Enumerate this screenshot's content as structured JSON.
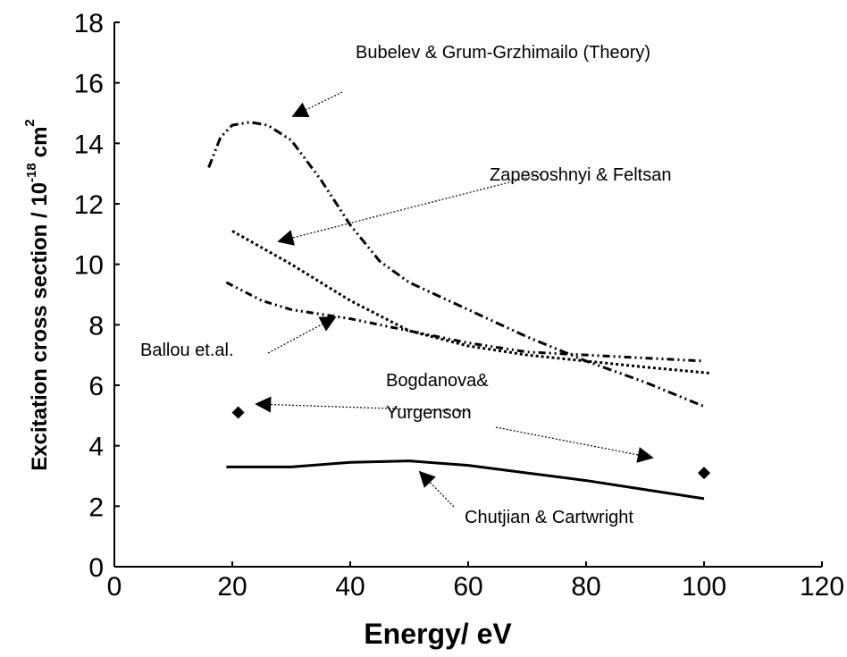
{
  "chart_data": {
    "type": "line",
    "x_label": "Energy/ eV",
    "y_label": {
      "text": "Excitation cross section / 10",
      "exponent": "-18",
      "unit": "cm",
      "unit_exponent": "2"
    },
    "xlim": [
      0,
      120
    ],
    "xticks": [
      0,
      20,
      40,
      60,
      80,
      100,
      120
    ],
    "ylim": [
      0,
      18
    ],
    "yticks": [
      0,
      2,
      4,
      6,
      8,
      10,
      12,
      14,
      16,
      18
    ],
    "color": "#000000",
    "series": [
      {
        "linestyle": "dash-dot-dot",
        "x": [
          16,
          18,
          20,
          23,
          26,
          30,
          35,
          40,
          45,
          50,
          60,
          70,
          80,
          90,
          100
        ],
        "values": [
          13.2,
          14.2,
          14.6,
          14.7,
          14.6,
          14.1,
          12.8,
          11.3,
          10.1,
          9.4,
          8.5,
          7.6,
          6.8,
          6.1,
          5.3
        ]
      },
      {
        "linestyle": "dotted",
        "x": [
          20,
          30,
          40,
          50,
          60,
          70,
          80,
          90,
          101
        ],
        "values": [
          11.1,
          10.0,
          8.8,
          7.8,
          7.3,
          7.0,
          6.8,
          6.6,
          6.4
        ]
      },
      {
        "linestyle": "dash-dot",
        "x": [
          19,
          25,
          30,
          40,
          50,
          60,
          70,
          80,
          90,
          100
        ],
        "values": [
          9.4,
          8.8,
          8.5,
          8.2,
          7.8,
          7.4,
          7.1,
          7.0,
          6.9,
          6.8
        ]
      },
      {
        "linestyle": "solid",
        "x": [
          19,
          30,
          40,
          50,
          60,
          70,
          80,
          90,
          100
        ],
        "values": [
          3.3,
          3.3,
          3.45,
          3.5,
          3.35,
          3.1,
          2.85,
          2.55,
          2.25
        ]
      },
      {
        "linestyle": "markers",
        "x": [
          21,
          100
        ],
        "values": [
          5.1,
          3.1
        ]
      }
    ],
    "annotations": [
      "Bubelev & Grum-Grzhimailo (Theory)",
      "Zapesoshnyi & Feltsan",
      "Ballou et.al.",
      "Bogdanova&",
      "Yurgenson",
      "Chutjian & Cartwright"
    ]
  }
}
